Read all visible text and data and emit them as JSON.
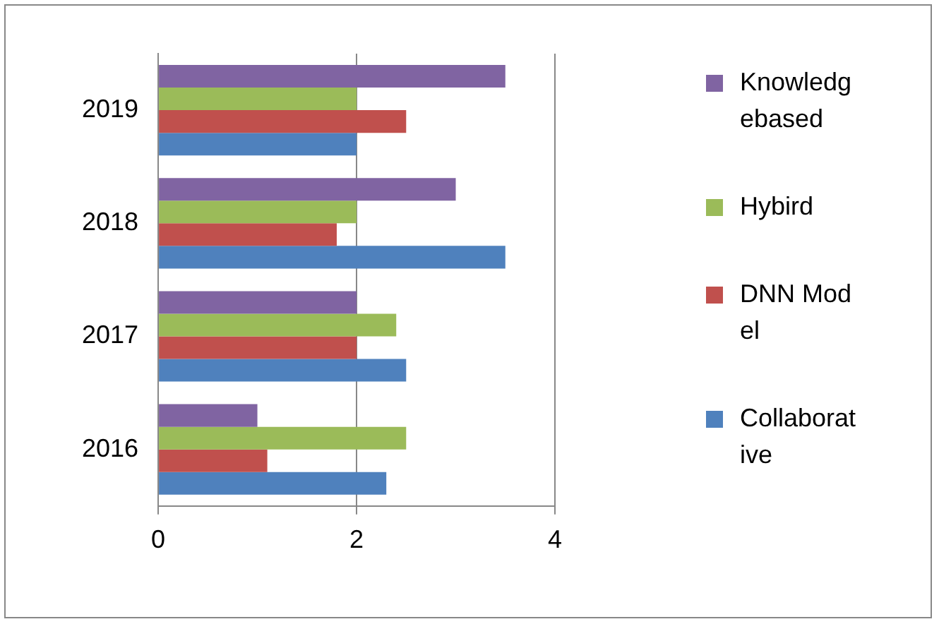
{
  "chart_data": {
    "type": "bar",
    "orientation": "horizontal",
    "categories": [
      "2019",
      "2018",
      "2017",
      "2016"
    ],
    "series": [
      {
        "name": "Knowledgebased",
        "color": "#8064a2",
        "values": [
          3.5,
          3.0,
          2.0,
          1.0
        ]
      },
      {
        "name": "Hybird",
        "color": "#9bbb59",
        "values": [
          2.0,
          2.0,
          2.4,
          2.5
        ]
      },
      {
        "name": "DNN Model",
        "color": "#c0504d",
        "values": [
          2.5,
          1.8,
          2.0,
          1.1
        ]
      },
      {
        "name": "Collaborative",
        "color": "#4f81bd",
        "values": [
          2.0,
          3.5,
          2.5,
          2.3
        ]
      }
    ],
    "xlim": [
      0,
      4
    ],
    "xticks": [
      0,
      2,
      4
    ],
    "grid": "x",
    "legend": "right"
  }
}
